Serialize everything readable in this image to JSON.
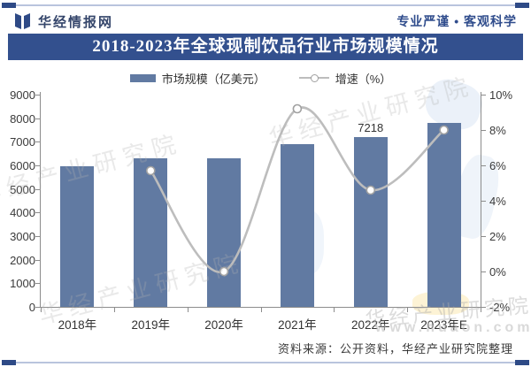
{
  "header": {
    "brand": "华经情报网",
    "slogan": "专业严谨 • 客观科学",
    "title": "2018-2023年全球现制饮品行业市场规模情况"
  },
  "legend": {
    "items": [
      {
        "label": "市场规模（亿美元）",
        "swatch": "bar-swatch"
      },
      {
        "label": "增速（%）",
        "swatch": "line-marker"
      }
    ]
  },
  "chart_data": {
    "type": "bar",
    "subtype": "bar-line-combo",
    "title": "2018-2023年全球现制饮品行业市场规模情况",
    "categories": [
      "2018年",
      "2019年",
      "2020年",
      "2021年",
      "2022年",
      "2023年E"
    ],
    "series": [
      {
        "name": "市场规模（亿美元）",
        "type": "bar",
        "axis": "left",
        "values": [
          5970,
          6310,
          6310,
          6900,
          7218,
          7790
        ],
        "data_labels": [
          null,
          null,
          null,
          null,
          "7218",
          null
        ]
      },
      {
        "name": "增速（%）",
        "type": "line",
        "axis": "right",
        "values": [
          null,
          5.7,
          0.0,
          9.2,
          4.6,
          8.0
        ]
      }
    ],
    "left_axis": {
      "min": 0,
      "max": 9000,
      "step": 1000
    },
    "right_axis": {
      "min": -2,
      "max": 10,
      "step": 2,
      "suffix": "%"
    },
    "grid": false,
    "legend_position": "top"
  },
  "footer": {
    "source": "资料来源：公开资料，华经产业研究院整理"
  },
  "watermark": {
    "name": "华经产业研究院",
    "url": "www.huaon.com"
  },
  "colors": {
    "bar": "#617AA2",
    "line": "#BDBDBD",
    "marker_fill": "#FFFFFF",
    "marker_stroke": "#A0A0A0",
    "title_bar_bg": "#33508E",
    "accent_dark": "#2E4A86",
    "axis": "#8C8C8C",
    "text": "#3A3A3A"
  }
}
